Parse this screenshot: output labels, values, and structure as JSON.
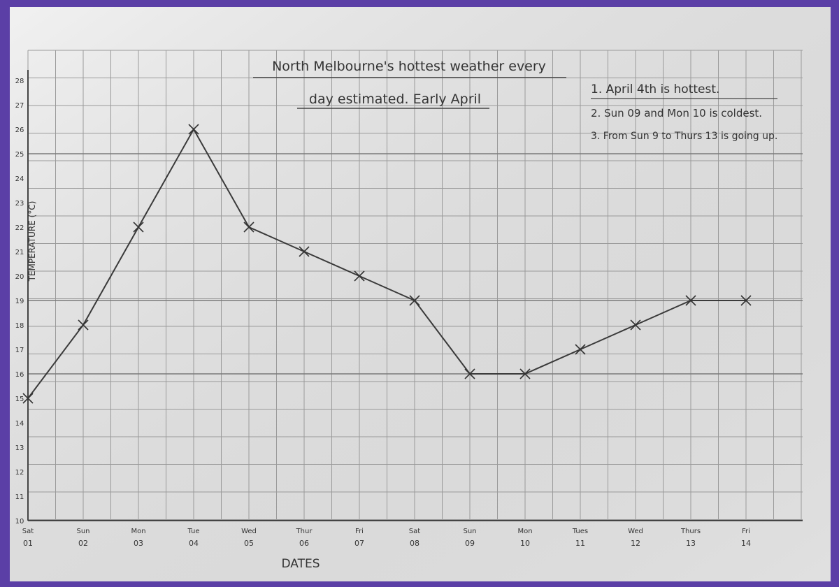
{
  "chart_data": {
    "type": "line",
    "title": [
      "North Melbourne's hottest weather every",
      "day estimated. Early April"
    ],
    "notes": [
      "1. April 4th is hottest.",
      "2. Sun 09 and Mon 10 is coldest.",
      "3. From Sun 9 to Thurs 13 is going up."
    ],
    "xlabel": "DATES",
    "ylabel": "TEMPERATURE (°C)",
    "x_ticks": [
      [
        "Sat",
        "01"
      ],
      [
        "Sun",
        "02"
      ],
      [
        "Mon",
        "03"
      ],
      [
        "Tue",
        "04"
      ],
      [
        "Wed",
        "05"
      ],
      [
        "Thur",
        "06"
      ],
      [
        "Fri",
        "07"
      ],
      [
        "Sat",
        "08"
      ],
      [
        "Sun",
        "09"
      ],
      [
        "Mon",
        "10"
      ],
      [
        "Tues",
        "11"
      ],
      [
        "Wed",
        "12"
      ],
      [
        "Thurs",
        "13"
      ],
      [
        "Fri",
        "14"
      ]
    ],
    "y_ticks": [
      10,
      11,
      12,
      13,
      14,
      15,
      16,
      17,
      18,
      19,
      20,
      21,
      22,
      23,
      24,
      25,
      26,
      27,
      28
    ],
    "ylim": [
      10,
      28
    ],
    "series": [
      {
        "x": [
          "Sat 01",
          "Sun 02",
          "Mon 03",
          "Tue 04",
          "Wed 05",
          "Thur 06",
          "Fri 07",
          "Sat 08",
          "Sun 09",
          "Mon 10",
          "Tues 11",
          "Wed 12",
          "Thurs 13",
          "Fri 14"
        ],
        "values": [
          15,
          18,
          22,
          26,
          22,
          21,
          20,
          19,
          16,
          16,
          17,
          18,
          19,
          19
        ]
      }
    ],
    "grid": true
  }
}
